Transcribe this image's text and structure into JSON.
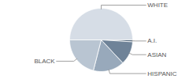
{
  "chart_data": {
    "type": "pie",
    "categories": [
      "WHITE",
      "A.I.",
      "ASIAN",
      "HISPANIC",
      "BLACK"
    ],
    "values": [
      50,
      1,
      12,
      16,
      21
    ],
    "colors": [
      "#d6dde6",
      "#52677c",
      "#6f8398",
      "#98a9bb",
      "#b9c5d2"
    ],
    "tick_labels": false
  }
}
